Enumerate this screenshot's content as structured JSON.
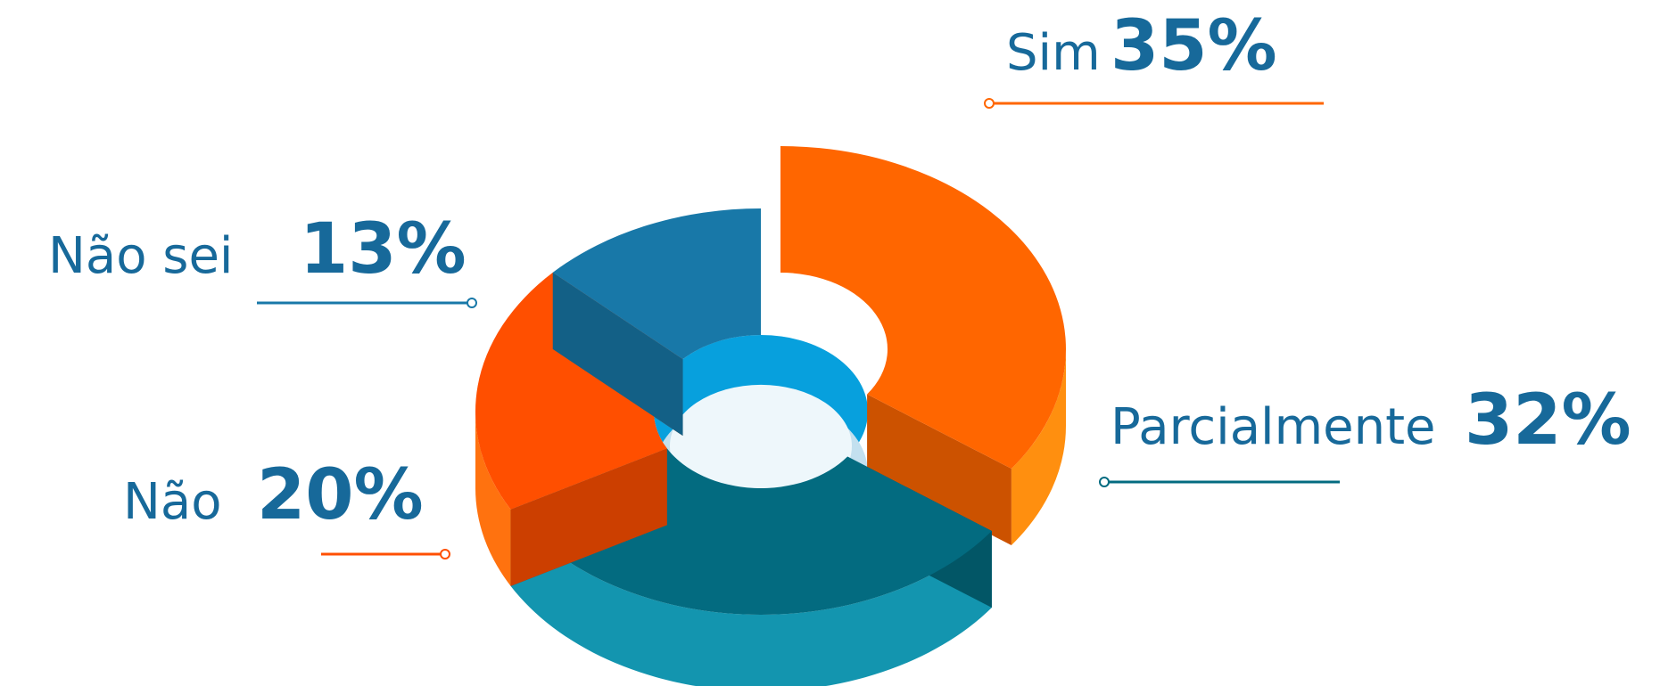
{
  "chart_data": {
    "type": "pie",
    "categories": [
      "Sim",
      "Parcialmente",
      "Não",
      "Não sei"
    ],
    "values": [
      35,
      32,
      20,
      13
    ],
    "value_labels": [
      "35%",
      "32%",
      "20%",
      "13%"
    ],
    "colors": [
      "#ff6600",
      "#036b80",
      "#ff4f00",
      "#1878a8"
    ]
  }
}
